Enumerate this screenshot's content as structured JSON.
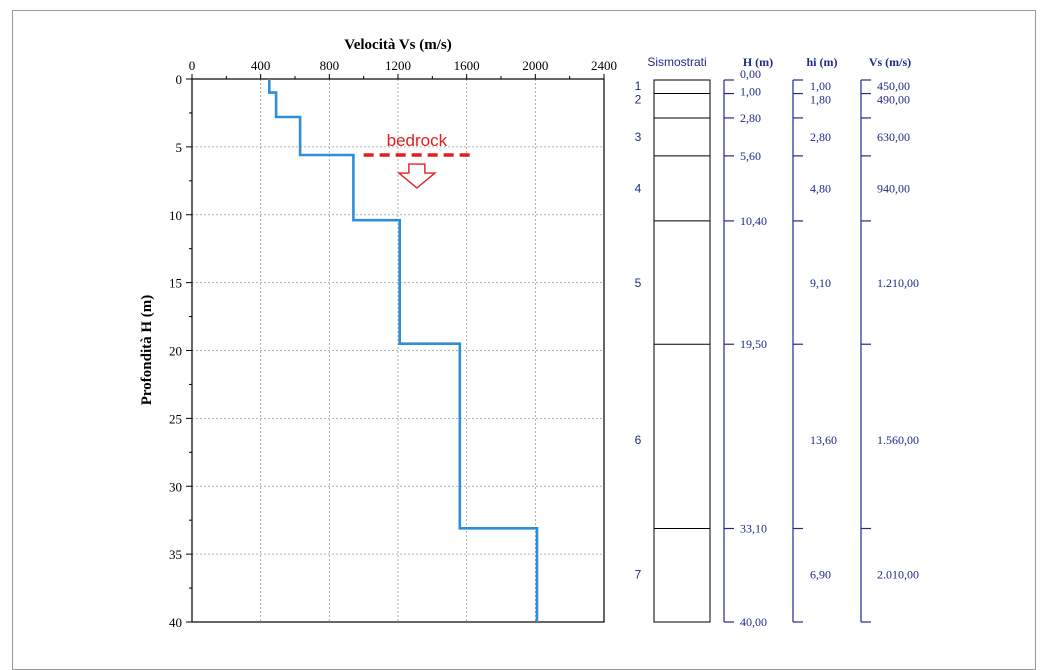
{
  "chart_data": {
    "type": "line",
    "title": "Velocità Vs (m/s)",
    "xlabel": "Velocità Vs (m/s)",
    "ylabel": "Profondità H (m)",
    "xlim": [
      0,
      2400
    ],
    "ylim": [
      0,
      40
    ],
    "y_inverted": true,
    "x_axis_position": "top",
    "grid": true,
    "x_ticks": [
      "0",
      "400",
      "800",
      "1200",
      "1600",
      "2000",
      "2400"
    ],
    "y_ticks": [
      "0",
      "5",
      "10",
      "15",
      "20",
      "25",
      "30",
      "35",
      "40"
    ],
    "series": [
      {
        "color": "#2e8fd8",
        "points": [
          [
            450,
            0
          ],
          [
            450,
            1.0
          ],
          [
            490,
            1.0
          ],
          [
            490,
            2.8
          ],
          [
            630,
            2.8
          ],
          [
            630,
            5.6
          ],
          [
            940,
            5.6
          ],
          [
            940,
            10.4
          ],
          [
            1210,
            10.4
          ],
          [
            1210,
            19.5
          ],
          [
            1560,
            19.5
          ],
          [
            1560,
            33.1
          ],
          [
            2010,
            33.1
          ],
          [
            2010,
            40.0
          ]
        ]
      }
    ],
    "annotations": [
      {
        "text": "bedrock",
        "depth": 5.6,
        "x_from": 1000,
        "x_to": 1620,
        "color": "#e02020"
      }
    ]
  },
  "table": {
    "headers": {
      "sismostrati": "Sismostrati",
      "H": "H (m)",
      "hi": "hi (m)",
      "vs": "Vs (m/s)"
    },
    "depth_labels": [
      "0,00",
      "1,00",
      "2,80",
      "5,60",
      "10,40",
      "19,50",
      "33,10",
      "40,00"
    ],
    "depths": [
      0,
      1.0,
      2.8,
      5.6,
      10.4,
      19.5,
      33.1,
      40.0
    ],
    "layers": [
      {
        "n": "1",
        "hi": "1,00",
        "vs": "450,00"
      },
      {
        "n": "2",
        "hi": "1,80",
        "vs": "490,00"
      },
      {
        "n": "3",
        "hi": "2,80",
        "vs": "630,00"
      },
      {
        "n": "4",
        "hi": "4,80",
        "vs": "940,00"
      },
      {
        "n": "5",
        "hi": "9,10",
        "vs": "1.210,00"
      },
      {
        "n": "6",
        "hi": "13,60",
        "vs": "1.560,00"
      },
      {
        "n": "7",
        "hi": "6,90",
        "vs": "2.010,00"
      }
    ]
  },
  "colors": {
    "line": "#2e8fd8",
    "annotation": "#e02020",
    "table_text": "#1f2a8a",
    "axis": "#000000",
    "grid": "#9a9a9a"
  }
}
